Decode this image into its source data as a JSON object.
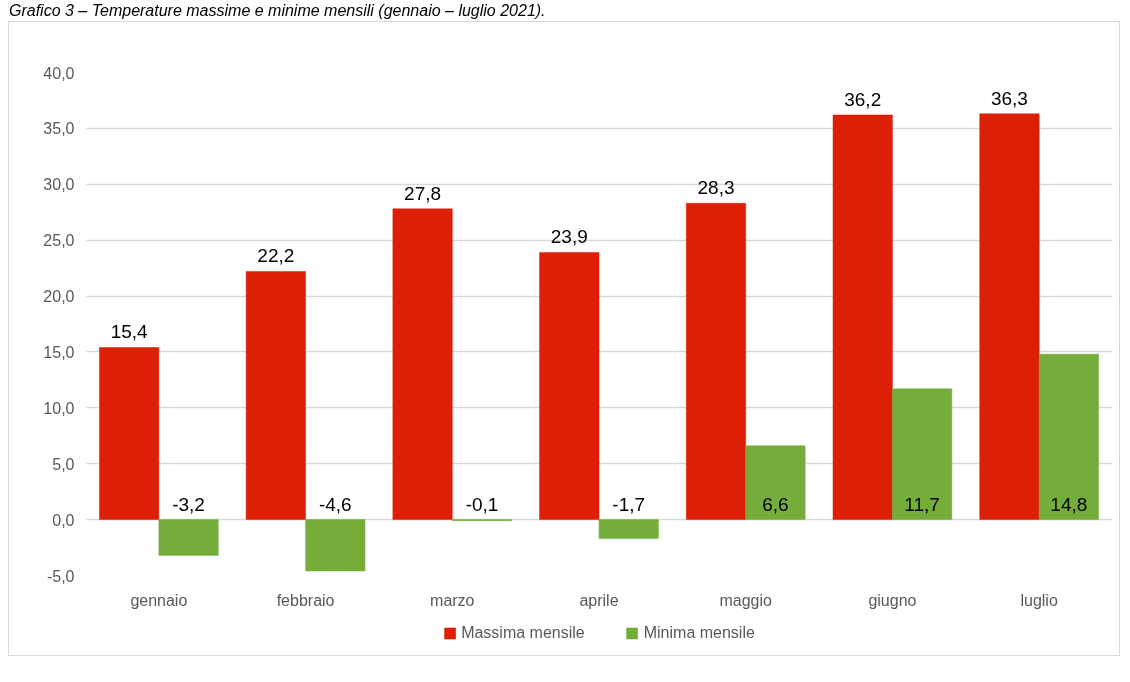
{
  "chart_data": {
    "type": "bar",
    "title": "Grafico 3 – Temperature massime e minime mensili (gennaio – luglio 2021).",
    "categories": [
      "gennaio",
      "febbraio",
      "marzo",
      "aprile",
      "maggio",
      "giugno",
      "luglio"
    ],
    "series": [
      {
        "name": "Massima mensile",
        "color": "#dc1f06",
        "values": [
          15.4,
          22.2,
          27.8,
          23.9,
          28.3,
          36.2,
          36.3
        ],
        "value_labels": [
          "15,4",
          "22,2",
          "27,8",
          "23,9",
          "28,3",
          "36,2",
          "36,3"
        ]
      },
      {
        "name": "Minima mensile",
        "color": "#74ad3a",
        "values": [
          -3.2,
          -4.6,
          -0.1,
          -1.7,
          6.6,
          11.7,
          14.8
        ],
        "value_labels": [
          "-3,2",
          "-4,6",
          "-0,1",
          "-1,7",
          "6,6",
          "11,7",
          "14,8"
        ]
      }
    ],
    "ylim": [
      -5,
      40
    ],
    "yticks": [
      {
        "value": -5,
        "label": "-5,0"
      },
      {
        "value": 0,
        "label": "0,0"
      },
      {
        "value": 5,
        "label": "5,0"
      },
      {
        "value": 10,
        "label": "10,0"
      },
      {
        "value": 15,
        "label": "15,0"
      },
      {
        "value": 20,
        "label": "20,0"
      },
      {
        "value": 25,
        "label": "25,0"
      },
      {
        "value": 30,
        "label": "30,0"
      },
      {
        "value": 35,
        "label": "35,0"
      },
      {
        "value": 40,
        "label": "40,0"
      }
    ],
    "grid": "y",
    "legend": "bottom"
  }
}
